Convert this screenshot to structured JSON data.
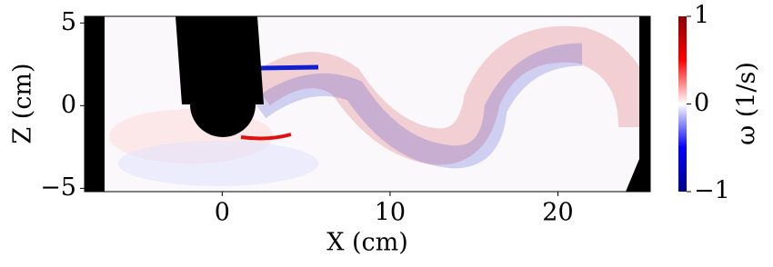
{
  "chart_data": {
    "type": "heatmap",
    "xlabel": "X (cm)",
    "ylabel": "Z (cm)",
    "xlim": [
      -8.2,
      25.5
    ],
    "xticks": [
      0,
      10,
      20
    ],
    "ylim": [
      -5.2,
      5.4
    ],
    "yticks": [
      {
        "value": -5,
        "label": "−5"
      },
      0,
      5
    ],
    "colorbar": {
      "label": "ω (1/s)",
      "lim": [
        -1,
        1
      ],
      "ticks": [
        {
          "value": -1,
          "label": "−1"
        },
        0,
        1
      ],
      "colors": [
        "#00008b",
        "#0000ff",
        "#ffffff",
        "#ff0000",
        "#8b0000"
      ]
    }
  }
}
